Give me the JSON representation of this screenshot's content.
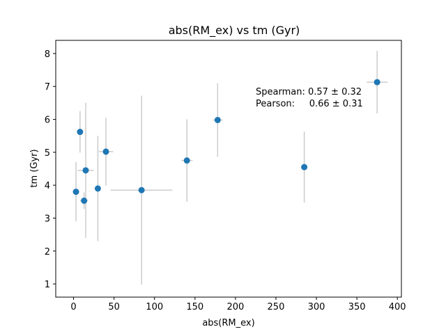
{
  "chart_data": {
    "type": "scatter",
    "title": "abs(RM_ex) vs tm (Gyr)",
    "xlabel": "abs(RM_ex)",
    "ylabel": "tm (Gyr)",
    "xlim": [
      -22,
      405
    ],
    "ylim": [
      0.6,
      8.4
    ],
    "xticks": [
      0,
      50,
      100,
      150,
      200,
      250,
      300,
      350,
      400
    ],
    "yticks": [
      1,
      2,
      3,
      4,
      5,
      6,
      7,
      8
    ],
    "grid": false,
    "legend": "none",
    "annotation": "Spearman: 0.57 ± 0.32\nPearson:     0.66 ± 0.31",
    "marker_color": "#1f77b4",
    "errorbar_color": "#cccccc",
    "points": [
      {
        "x": 3,
        "y": 3.8,
        "xerr": 0,
        "yerr": 0.9
      },
      {
        "x": 8,
        "y": 5.62,
        "xerr": 0,
        "yerr": 0.63
      },
      {
        "x": 13,
        "y": 3.53,
        "xerr": 5,
        "yerr": 0.25
      },
      {
        "x": 15,
        "y": 4.45,
        "xerr": 10,
        "yerr": 2.05
      },
      {
        "x": 30,
        "y": 3.9,
        "xerr": 0,
        "yerr": 1.6
      },
      {
        "x": 40,
        "y": 5.02,
        "xerr": 9,
        "yerr": 1.03
      },
      {
        "x": 84,
        "y": 3.85,
        "xerr": 38,
        "yerr": 2.87
      },
      {
        "x": 140,
        "y": 4.75,
        "xerr": 7,
        "yerr": 1.25
      },
      {
        "x": 178,
        "y": 5.98,
        "xerr": 6,
        "yerr": 1.12
      },
      {
        "x": 285,
        "y": 4.55,
        "xerr": 3,
        "yerr": 1.08
      },
      {
        "x": 375,
        "y": 7.13,
        "xerr": 13,
        "yerr": 0.95
      }
    ]
  }
}
